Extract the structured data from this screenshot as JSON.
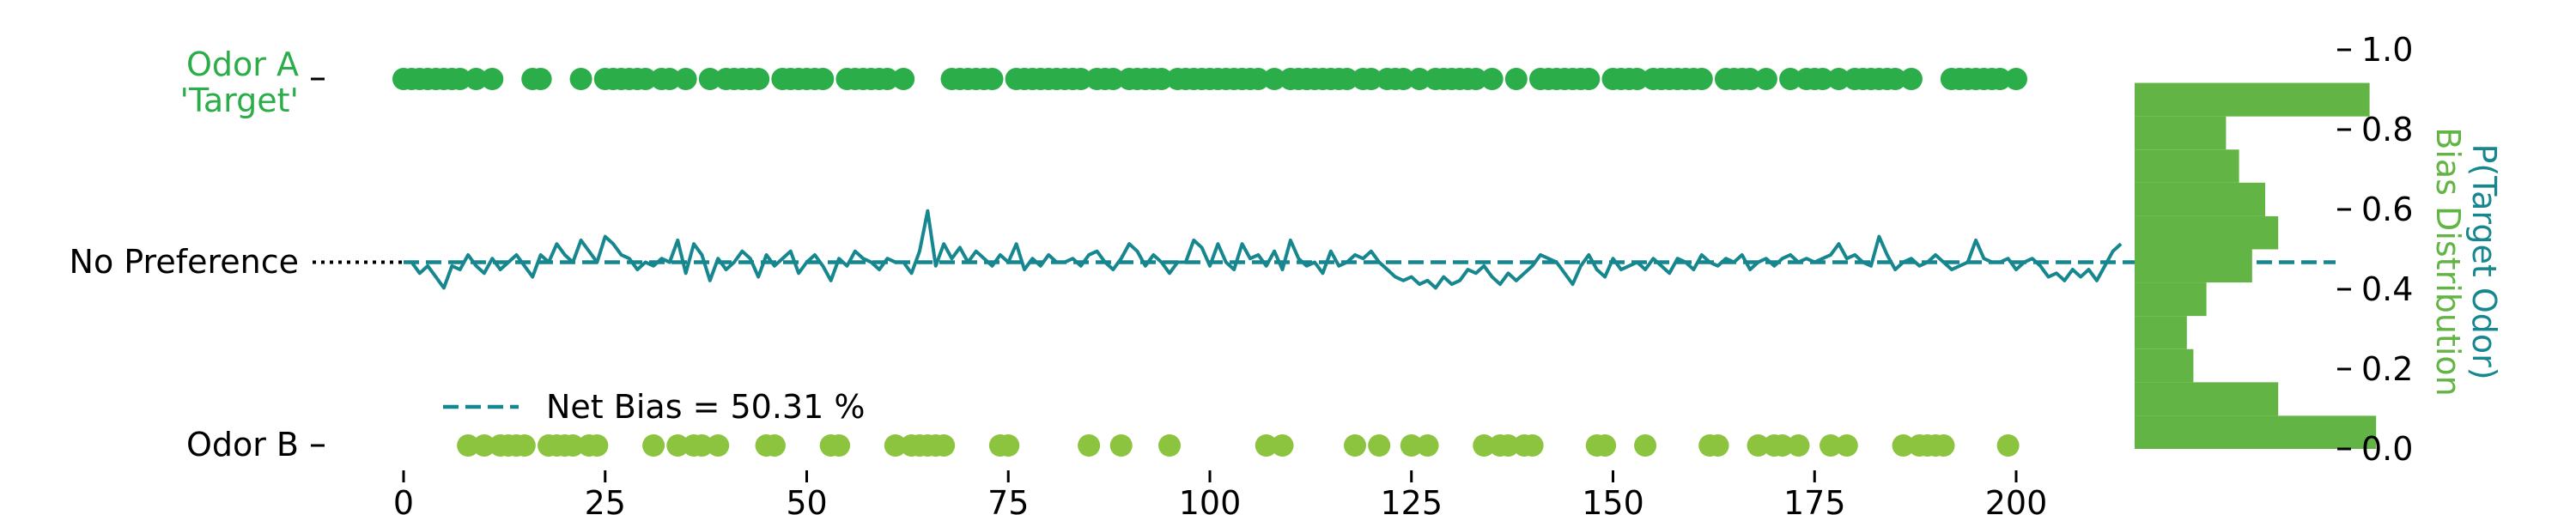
{
  "colors": {
    "target": "#2bad4a",
    "odorB": "#8cc43f",
    "line": "#16878f",
    "hist": "#62b444",
    "axis_right_label": "#16878f",
    "axis_right_label2": "#62b444",
    "text": "#000000"
  },
  "labels": {
    "odorA_line1": "Odor A",
    "odorA_line2": "'Target'",
    "no_pref": "No Preference",
    "odorB": "Odor B",
    "right_ylabel_1": "P(Target Odor)",
    "right_ylabel_2": "Bias Distribution",
    "legend": "Net Bias = 50.31 %"
  },
  "chart_data": [
    {
      "type": "scatter+line",
      "x_ticks": [
        "0",
        "25",
        "50",
        "75",
        "100",
        "125",
        "150",
        "175",
        "200"
      ],
      "xlim": [
        0,
        200
      ],
      "ylim": [
        0,
        1
      ],
      "choices": [
        1,
        1,
        1,
        1,
        1,
        1,
        1,
        1,
        0,
        1,
        0,
        1,
        0,
        0,
        0,
        0,
        1,
        1,
        0,
        0,
        0,
        0,
        1,
        0,
        0,
        1,
        1,
        1,
        1,
        1,
        1,
        0,
        1,
        1,
        0,
        1,
        0,
        0,
        1,
        0,
        1,
        1,
        1,
        1,
        1,
        0,
        0,
        1,
        1,
        1,
        1,
        1,
        1,
        0,
        0,
        1,
        1,
        1,
        1,
        1,
        1,
        0,
        1,
        0,
        0,
        0,
        0,
        0,
        1,
        1,
        1,
        1,
        1,
        1,
        0,
        0,
        1,
        1,
        1,
        1,
        1,
        1,
        1,
        1,
        1,
        0,
        1,
        1,
        1,
        0,
        1,
        1,
        1,
        1,
        1,
        0,
        1,
        1,
        1,
        1,
        1,
        1,
        1,
        1,
        1,
        1,
        1,
        0,
        1,
        0,
        1,
        1,
        1,
        1,
        1,
        1,
        1,
        1,
        0,
        1,
        1,
        0,
        1,
        1,
        1,
        0,
        1,
        0,
        1,
        1,
        1,
        1,
        1,
        1,
        0,
        1,
        0,
        0,
        1,
        0,
        0,
        1,
        1,
        1,
        1,
        1,
        1,
        1,
        0,
        0,
        1,
        1,
        1,
        1,
        0,
        1,
        1,
        1,
        1,
        1,
        1,
        1,
        0,
        0,
        1,
        1,
        1,
        1,
        0,
        1,
        0,
        0,
        1,
        0,
        1,
        1,
        1,
        0,
        1,
        0,
        1,
        1,
        1,
        1,
        1,
        1,
        0,
        1,
        0,
        0,
        0,
        0,
        1,
        1,
        1,
        1,
        1,
        1,
        1,
        0,
        1
      ],
      "running_p_target": [
        0.5,
        0.5,
        0.47,
        0.49,
        0.46,
        0.43,
        0.49,
        0.48,
        0.52,
        0.49,
        0.47,
        0.51,
        0.48,
        0.5,
        0.52,
        0.49,
        0.46,
        0.52,
        0.5,
        0.55,
        0.52,
        0.5,
        0.56,
        0.53,
        0.5,
        0.57,
        0.55,
        0.52,
        0.51,
        0.48,
        0.5,
        0.49,
        0.51,
        0.5,
        0.56,
        0.47,
        0.55,
        0.52,
        0.45,
        0.51,
        0.48,
        0.5,
        0.53,
        0.51,
        0.46,
        0.52,
        0.49,
        0.51,
        0.53,
        0.47,
        0.5,
        0.52,
        0.49,
        0.45,
        0.51,
        0.49,
        0.53,
        0.51,
        0.5,
        0.48,
        0.51,
        0.5,
        0.5,
        0.47,
        0.53,
        0.64,
        0.49,
        0.55,
        0.51,
        0.54,
        0.5,
        0.53,
        0.51,
        0.49,
        0.52,
        0.5,
        0.55,
        0.48,
        0.51,
        0.49,
        0.52,
        0.5,
        0.5,
        0.51,
        0.49,
        0.52,
        0.53,
        0.5,
        0.48,
        0.51,
        0.55,
        0.53,
        0.49,
        0.52,
        0.5,
        0.47,
        0.5,
        0.5,
        0.56,
        0.54,
        0.49,
        0.55,
        0.5,
        0.48,
        0.55,
        0.51,
        0.52,
        0.49,
        0.53,
        0.48,
        0.56,
        0.51,
        0.49,
        0.5,
        0.47,
        0.53,
        0.49,
        0.5,
        0.52,
        0.51,
        0.53,
        0.5,
        0.48,
        0.46,
        0.45,
        0.46,
        0.44,
        0.45,
        0.43,
        0.46,
        0.44,
        0.45,
        0.48,
        0.47,
        0.49,
        0.46,
        0.44,
        0.47,
        0.45,
        0.47,
        0.49,
        0.52,
        0.51,
        0.5,
        0.47,
        0.44,
        0.49,
        0.52,
        0.48,
        0.46,
        0.51,
        0.48,
        0.49,
        0.5,
        0.48,
        0.51,
        0.49,
        0.47,
        0.51,
        0.5,
        0.48,
        0.52,
        0.5,
        0.49,
        0.51,
        0.5,
        0.52,
        0.48,
        0.5,
        0.51,
        0.49,
        0.51,
        0.52,
        0.5,
        0.51,
        0.5,
        0.51,
        0.52,
        0.55,
        0.51,
        0.52,
        0.5,
        0.49,
        0.57,
        0.52,
        0.48,
        0.5,
        0.51,
        0.49,
        0.5,
        0.52,
        0.5,
        0.48,
        0.49,
        0.5,
        0.56,
        0.51,
        0.5,
        0.5,
        0.51,
        0.48,
        0.5,
        0.51,
        0.49,
        0.46,
        0.47,
        0.45,
        0.48,
        0.46,
        0.48,
        0.45,
        0.49,
        0.53,
        0.55
      ],
      "no_preference": 0.5,
      "net_bias": 0.5031
    },
    {
      "type": "histogram",
      "orientation": "horizontal",
      "y_ticks": [
        "0.0",
        "0.2",
        "0.4",
        "0.6",
        "0.8",
        "1.0"
      ],
      "ylim": [
        0,
        1.0
      ],
      "bins": [
        [
          0.0,
          0.083
        ],
        [
          0.083,
          0.167
        ],
        [
          0.167,
          0.25
        ],
        [
          0.25,
          0.333
        ],
        [
          0.333,
          0.417
        ],
        [
          0.417,
          0.5
        ],
        [
          0.5,
          0.583
        ],
        [
          0.583,
          0.667
        ],
        [
          0.667,
          0.75
        ],
        [
          0.75,
          0.833
        ],
        [
          0.833,
          0.917
        ]
      ],
      "counts": [
        37,
        22,
        9,
        8,
        11,
        18,
        22,
        20,
        16,
        14,
        36
      ]
    }
  ]
}
